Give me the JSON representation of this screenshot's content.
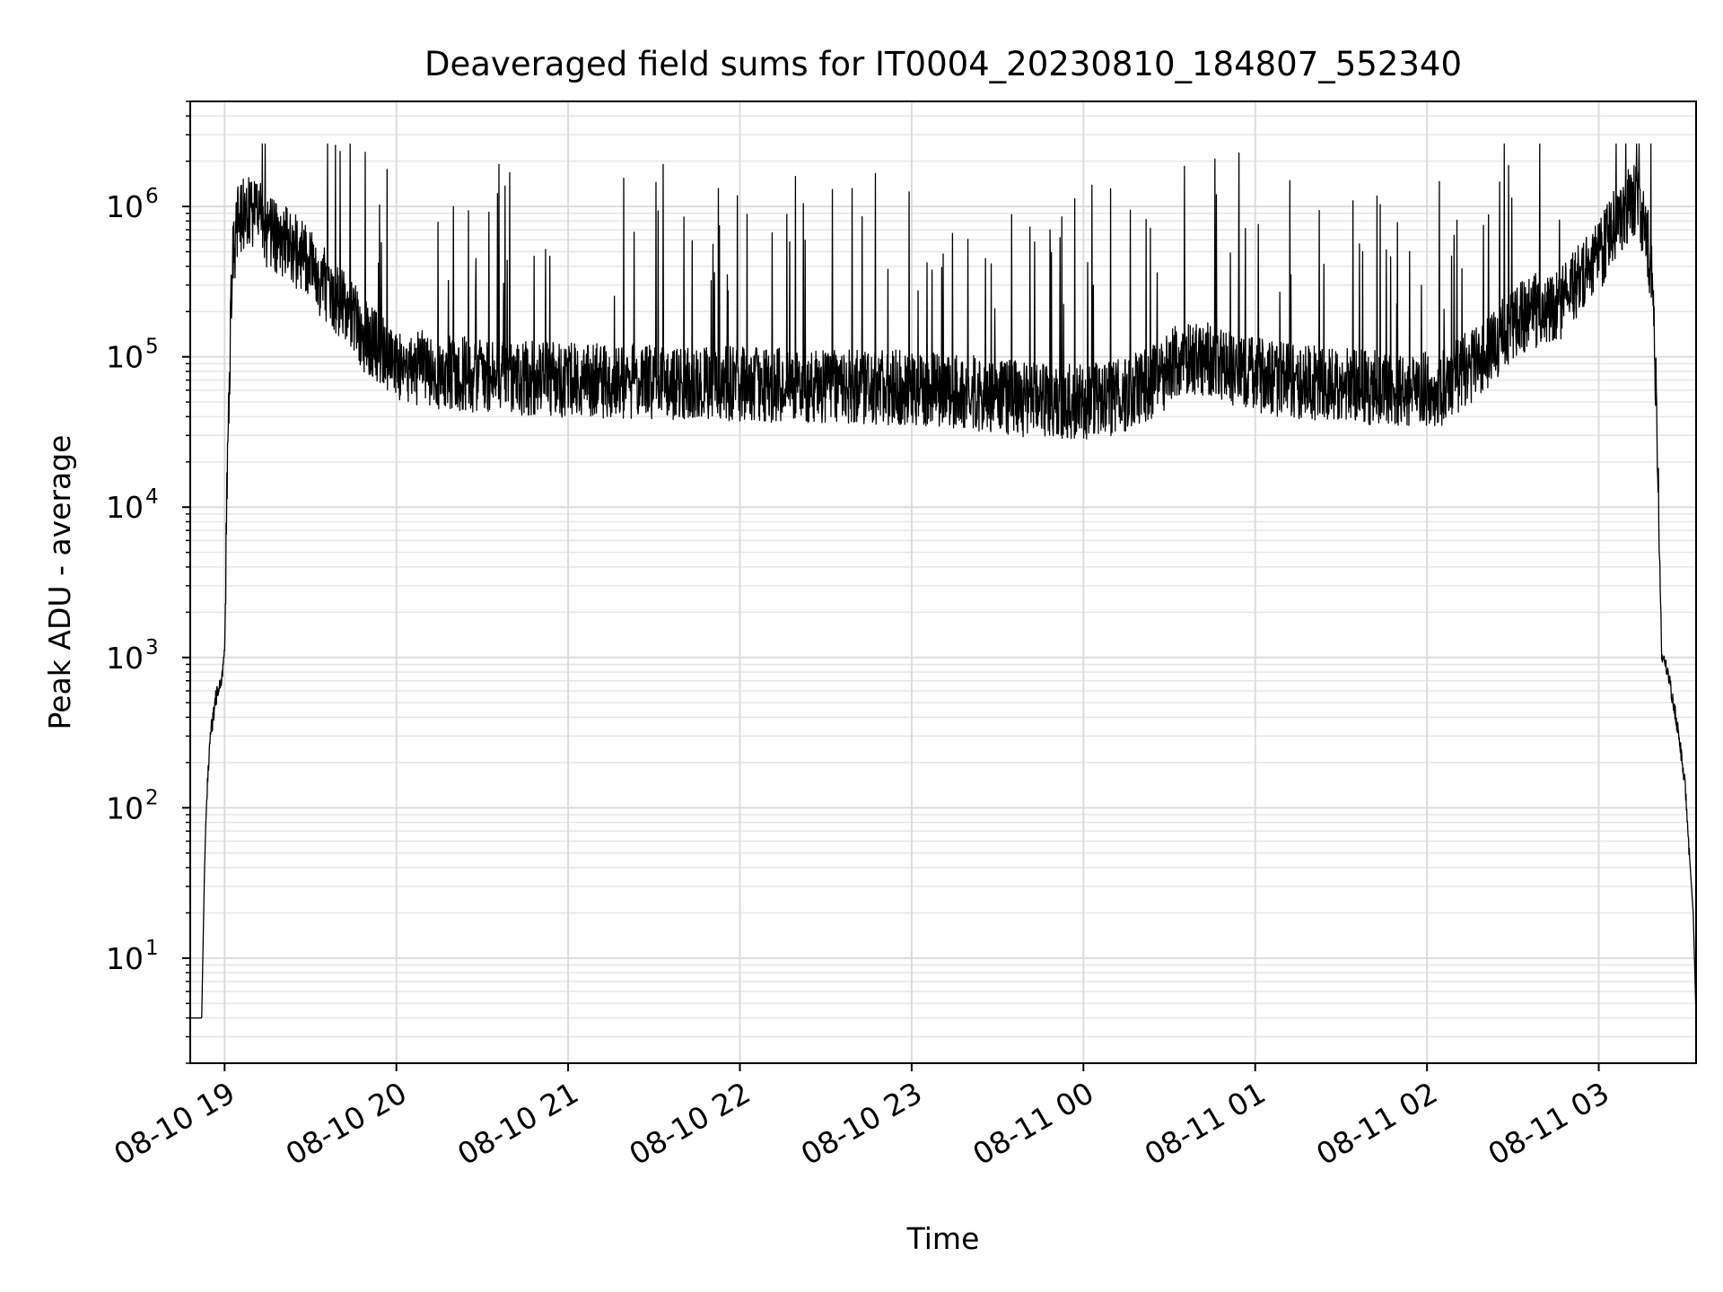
{
  "chart_data": {
    "type": "line",
    "title": "Deaveraged field sums for IT0004_20230810_184807_552340",
    "xlabel": "Time",
    "ylabel": "Peak ADU - average",
    "yscale": "log",
    "ylim": [
      2,
      5000000
    ],
    "xlim": [
      "2023-08-10 18:48",
      "2023-08-11 03:34"
    ],
    "grid": true,
    "grid_minor": true,
    "line_color": "#000000",
    "x_ticks": [
      {
        "time": "2023-08-10 19:00",
        "label": "08-10 19"
      },
      {
        "time": "2023-08-10 20:00",
        "label": "08-10 20"
      },
      {
        "time": "2023-08-10 21:00",
        "label": "08-10 21"
      },
      {
        "time": "2023-08-10 22:00",
        "label": "08-10 22"
      },
      {
        "time": "2023-08-10 23:00",
        "label": "08-10 23"
      },
      {
        "time": "2023-08-11 00:00",
        "label": "08-11 00"
      },
      {
        "time": "2023-08-11 01:00",
        "label": "08-11 01"
      },
      {
        "time": "2023-08-11 02:00",
        "label": "08-11 02"
      },
      {
        "time": "2023-08-11 03:00",
        "label": "08-11 03"
      }
    ],
    "y_ticks": [
      {
        "value": 10,
        "label": "10",
        "exp": "1"
      },
      {
        "value": 100,
        "label": "10",
        "exp": "2"
      },
      {
        "value": 1000,
        "label": "10",
        "exp": "3"
      },
      {
        "value": 10000,
        "label": "10",
        "exp": "4"
      },
      {
        "value": 100000,
        "label": "10",
        "exp": "5"
      },
      {
        "value": 1000000,
        "label": "10",
        "exp": "6"
      }
    ],
    "series": [
      {
        "points": [
          [
            "2023-08-10 18:48",
            4
          ],
          [
            "2023-08-10 18:52",
            4
          ],
          [
            "2023-08-10 18:53",
            40
          ],
          [
            "2023-08-10 18:54",
            150
          ],
          [
            "2023-08-10 18:55",
            300
          ],
          [
            "2023-08-10 18:57",
            550
          ],
          [
            "2023-08-10 18:59",
            700
          ],
          [
            "2023-08-10 19:00",
            1100
          ],
          [
            "2023-08-10 19:01",
            20000
          ],
          [
            "2023-08-10 19:02",
            150000
          ],
          [
            "2023-08-10 19:03",
            500000
          ],
          [
            "2023-08-10 19:05",
            850000
          ],
          [
            "2023-08-10 19:08",
            1000000
          ],
          [
            "2023-08-10 19:12",
            900000
          ],
          [
            "2023-08-10 19:15",
            650000
          ],
          [
            "2023-08-10 19:20",
            600000
          ],
          [
            "2023-08-10 19:25",
            500000
          ],
          [
            "2023-08-10 19:30",
            400000
          ],
          [
            "2023-08-10 19:35",
            300000
          ],
          [
            "2023-08-10 19:40",
            230000
          ],
          [
            "2023-08-10 19:45",
            180000
          ],
          [
            "2023-08-10 19:50",
            130000
          ],
          [
            "2023-08-10 19:55",
            110000
          ],
          [
            "2023-08-10 20:00",
            90000
          ],
          [
            "2023-08-10 20:15",
            80000
          ],
          [
            "2023-08-10 20:30",
            75000
          ],
          [
            "2023-08-10 20:45",
            72000
          ],
          [
            "2023-08-10 21:00",
            70000
          ],
          [
            "2023-08-10 21:30",
            68000
          ],
          [
            "2023-08-10 22:00",
            66000
          ],
          [
            "2023-08-10 22:30",
            64000
          ],
          [
            "2023-08-10 23:00",
            62000
          ],
          [
            "2023-08-10 23:20",
            58000
          ],
          [
            "2023-08-10 23:40",
            52000
          ],
          [
            "2023-08-11 00:00",
            50000
          ],
          [
            "2023-08-11 00:15",
            55000
          ],
          [
            "2023-08-11 00:25",
            70000
          ],
          [
            "2023-08-11 00:35",
            100000
          ],
          [
            "2023-08-11 00:45",
            95000
          ],
          [
            "2023-08-11 00:55",
            80000
          ],
          [
            "2023-08-11 01:10",
            70000
          ],
          [
            "2023-08-11 01:30",
            65000
          ],
          [
            "2023-08-11 01:50",
            60000
          ],
          [
            "2023-08-11 02:05",
            62000
          ],
          [
            "2023-08-11 02:15",
            85000
          ],
          [
            "2023-08-11 02:25",
            130000
          ],
          [
            "2023-08-11 02:35",
            200000
          ],
          [
            "2023-08-11 02:45",
            210000
          ],
          [
            "2023-08-11 02:55",
            350000
          ],
          [
            "2023-08-11 03:00",
            450000
          ],
          [
            "2023-08-11 03:05",
            700000
          ],
          [
            "2023-08-11 03:10",
            1000000
          ],
          [
            "2023-08-11 03:13",
            1100000
          ],
          [
            "2023-08-11 03:16",
            800000
          ],
          [
            "2023-08-11 03:19",
            300000
          ],
          [
            "2023-08-11 03:21",
            10000
          ],
          [
            "2023-08-11 03:22",
            1000
          ],
          [
            "2023-08-11 03:24",
            800
          ],
          [
            "2023-08-11 03:26",
            500
          ],
          [
            "2023-08-11 03:28",
            300
          ],
          [
            "2023-08-11 03:30",
            150
          ],
          [
            "2023-08-11 03:33",
            20
          ],
          [
            "2023-08-11 03:34",
            4
          ]
        ]
      }
    ]
  }
}
